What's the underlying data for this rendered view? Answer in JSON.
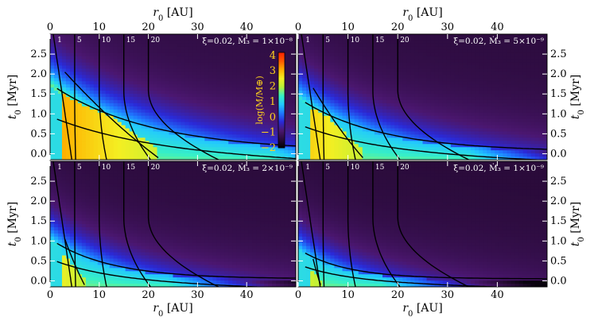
{
  "chart_data": {
    "type": "heatmap",
    "axes": {
      "xlabel": "r_0 [AU]",
      "ylabel": "t_0 [Myr]",
      "xlim": [
        0,
        50
      ],
      "ylim": [
        -0.15,
        3.0
      ],
      "xticks": [
        0,
        10,
        20,
        30,
        40
      ],
      "yticks": [
        0.0,
        0.5,
        1.0,
        1.5,
        2.0,
        2.5
      ],
      "x_tick_labels_bottom_left": [
        "0",
        "10",
        "20",
        "30",
        "40"
      ],
      "x_tick_labels_bottom_right": [
        "0",
        "10",
        "20",
        "30",
        "40"
      ],
      "x_tick_labels_top_left": [
        "0",
        "10",
        "20",
        "30",
        "40"
      ],
      "x_tick_labels_top_right": [
        "0",
        "10",
        "20",
        "30",
        "40"
      ],
      "y_tick_labels": [
        "0.0",
        "0.5",
        "1.0",
        "1.5",
        "2.0",
        "2.5"
      ]
    },
    "colorbar": {
      "label": "log(M/M⊕)",
      "range": [
        -2,
        4.2
      ],
      "ticks": [
        -2,
        -1,
        0,
        1,
        2,
        3,
        4
      ],
      "tick_labels": [
        "−2",
        "−1",
        "0",
        "1",
        "2",
        "3",
        "4"
      ],
      "colors": [
        "#000000",
        "#2a0b3a",
        "#4b1770",
        "#2a2ad8",
        "#1e78ff",
        "#22c8ff",
        "#37f0c6",
        "#b8f03a",
        "#f4ef22",
        "#ffb000",
        "#ff5a00",
        "#ff2200"
      ]
    },
    "contour_levels": [
      1,
      5,
      10,
      15,
      20
    ],
    "contour_label_text": [
      "1",
      "5",
      "10",
      "15",
      "20"
    ],
    "panels": [
      {
        "id": "a",
        "label": "ξ=0.02, Ṁ₃ = 1×10⁻⁸",
        "mdot": 1e-08,
        "yellow_r": 22,
        "yellow_t": 2.05,
        "zone_t0": 1.7,
        "zone_rise": 0.95,
        "zone_x": 18,
        "zone_decay": 15,
        "fade_x": 45,
        "bright": 1.0
      },
      {
        "id": "b",
        "label": "ξ=0.02, Ṁ₃ = 5×10⁻⁹",
        "mdot": 5e-09,
        "yellow_r": 13,
        "yellow_t": 1.65,
        "zone_t0": 1.35,
        "zone_rise": 0.7,
        "zone_x": 12,
        "zone_decay": 12,
        "fade_x": 34,
        "bright": 0.8
      },
      {
        "id": "c",
        "label": "ξ=0.02, Ṁ₃ = 2×10⁻⁹",
        "mdot": 2e-09,
        "yellow_r": 7,
        "yellow_t": 1.05,
        "zone_t0": 1.0,
        "zone_rise": 0.45,
        "zone_x": 8,
        "zone_decay": 9,
        "fade_x": 24,
        "bright": 0.6
      },
      {
        "id": "d",
        "label": "ξ=0.02, Ṁ₃ = 1×10⁻⁹",
        "mdot": 1e-09,
        "yellow_r": 4.5,
        "yellow_t": 0.55,
        "zone_t0": 0.75,
        "zone_rise": 0.3,
        "zone_x": 5.5,
        "zone_decay": 7,
        "fade_x": 17,
        "bright": 0.45
      }
    ]
  }
}
